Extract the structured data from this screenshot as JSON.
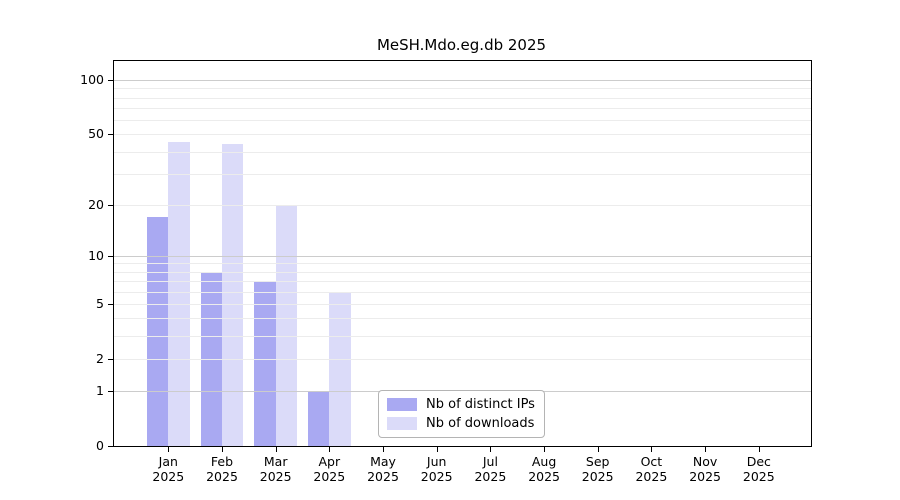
{
  "chart_data": {
    "type": "bar",
    "title": "MeSH.Mdo.eg.db 2025",
    "categories": [
      "Jan 2025",
      "Feb 2025",
      "Mar 2025",
      "Apr 2025",
      "May 2025",
      "Jun 2025",
      "Jul 2025",
      "Aug 2025",
      "Sep 2025",
      "Oct 2025",
      "Nov 2025",
      "Dec 2025"
    ],
    "series": [
      {
        "name": "Nb of distinct IPs",
        "color": "#a9a9f2",
        "values": [
          17,
          8,
          7,
          1,
          null,
          null,
          null,
          null,
          null,
          null,
          null,
          null
        ]
      },
      {
        "name": "Nb of downloads",
        "color": "#dbdbf9",
        "values": [
          45,
          44,
          20,
          6,
          null,
          null,
          null,
          null,
          null,
          null,
          null,
          null
        ]
      }
    ],
    "xlabel": "",
    "ylabel": "",
    "yscale": "log1p",
    "ylim": [
      0,
      127
    ],
    "yticks": [
      0,
      1,
      2,
      5,
      10,
      20,
      50,
      100
    ],
    "major_gridlines": [
      1,
      10,
      100
    ],
    "minor_gridlines": [
      2,
      3,
      4,
      5,
      6,
      7,
      8,
      9,
      20,
      30,
      40,
      50,
      60,
      70,
      80,
      90
    ],
    "grid": true,
    "legend_position": "lower center"
  }
}
